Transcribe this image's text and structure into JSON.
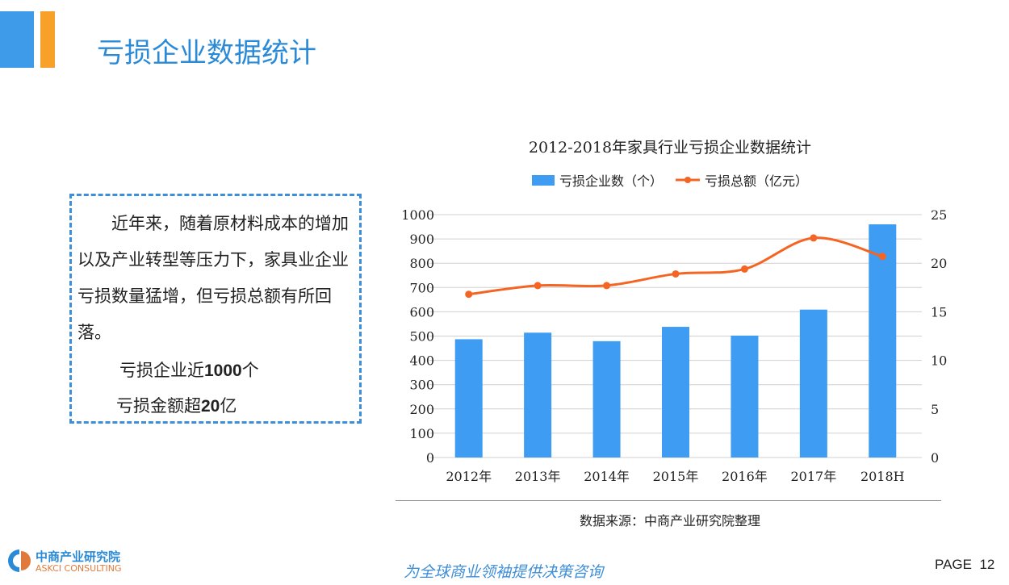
{
  "header": {
    "title": "亏损企业数据统计"
  },
  "textbox": {
    "paragraph": "近年来，随着原材料成本的增加以及产业转型等压力下，家具业企业亏损数量猛增，但亏损总额有所回落。",
    "line1_prefix": "亏损企业近",
    "line1_value": "1000",
    "line1_suffix": "个",
    "line2_prefix": "亏损金额超",
    "line2_value": "20",
    "line2_suffix": "亿"
  },
  "chart_data": {
    "type": "bar+line",
    "title": "2012-2018年家具行业亏损企业数据统计",
    "categories": [
      "2012年",
      "2013年",
      "2014年",
      "2015年",
      "2016年",
      "2017年",
      "2018H"
    ],
    "series": [
      {
        "name": "亏损企业数（个）",
        "type": "bar",
        "axis": "left",
        "color": "#3e9cf2",
        "values": [
          487,
          514,
          479,
          538,
          502,
          609,
          960
        ]
      },
      {
        "name": "亏损总额（亿元）",
        "type": "line",
        "axis": "right",
        "color": "#f46524",
        "values": [
          16.8,
          17.7,
          17.7,
          18.9,
          19.4,
          22.6,
          20.7
        ]
      }
    ],
    "ylim_left": [
      0,
      1000
    ],
    "yticks_left": [
      0,
      100,
      200,
      300,
      400,
      500,
      600,
      700,
      800,
      900,
      1000
    ],
    "ylim_right": [
      0,
      25
    ],
    "yticks_right": [
      0,
      5,
      10,
      15,
      20,
      25
    ],
    "grid": true,
    "legend": "top"
  },
  "source": "数据来源：中商产业研究院整理",
  "footer": {
    "slogan": "为全球商业领袖提供决策咨询",
    "page_label": "PAGE",
    "page_number": "12",
    "logo_cn": "中商产业研究院",
    "logo_en": "ASKCI CONSULTING"
  }
}
